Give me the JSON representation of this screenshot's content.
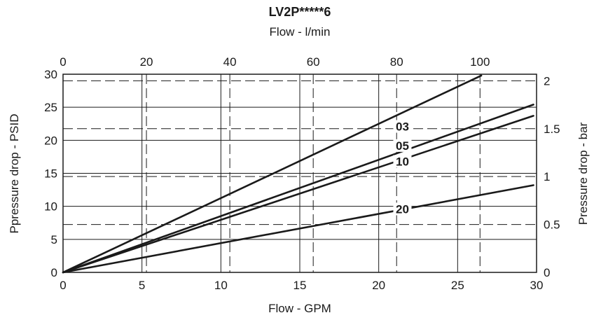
{
  "chart_data": {
    "type": "line",
    "title": "LV2P*****6",
    "xlabel": "Flow - GPM",
    "ylabel": "Ppressure drop - PSID",
    "x2label": "Flow - l/min",
    "y2label": "Pressure drop - bar",
    "xlim": [
      0,
      30
    ],
    "ylim": [
      0,
      30
    ],
    "x2lim": [
      0,
      113.56
    ],
    "y2lim": [
      0,
      2.0684
    ],
    "xticks": [
      "0",
      "5",
      "10",
      "15",
      "20",
      "25",
      "30"
    ],
    "yticks": [
      "0",
      "5",
      "10",
      "15",
      "20",
      "25",
      "30"
    ],
    "x2ticks": [
      "0",
      "20",
      "40",
      "60",
      "80",
      "100"
    ],
    "y2ticks": [
      "0",
      "0.5",
      "1",
      "1.5",
      "2"
    ],
    "grid": true,
    "series": [
      {
        "name": "03",
        "x": [
          0,
          26.5
        ],
        "y": [
          0,
          29.8
        ],
        "label_at": [
          21.5,
          22.1
        ]
      },
      {
        "name": "05",
        "x": [
          0,
          29.8
        ],
        "y": [
          0,
          25.4
        ],
        "label_at": [
          21.5,
          19.2
        ]
      },
      {
        "name": "10",
        "x": [
          0,
          29.8
        ],
        "y": [
          0,
          23.7
        ],
        "label_at": [
          21.5,
          16.8
        ]
      },
      {
        "name": "20",
        "x": [
          0,
          29.8
        ],
        "y": [
          0,
          13.2
        ],
        "label_at": [
          21.5,
          9.6
        ]
      }
    ]
  }
}
